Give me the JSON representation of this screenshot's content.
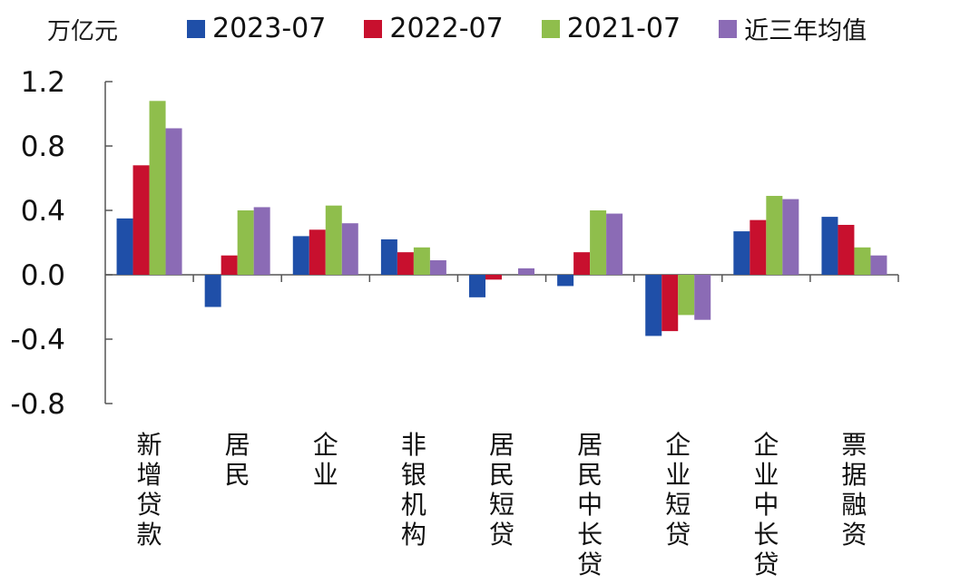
{
  "chart_data": {
    "type": "bar",
    "unit_label": "万亿元",
    "categories": [
      "新增贷款",
      "居民",
      "企业",
      "非银机构",
      "居民短贷",
      "居民中长贷",
      "企业短贷",
      "企业中长贷",
      "票据融资"
    ],
    "series": [
      {
        "name": "2023-07",
        "color": "#1f4fa8",
        "values": [
          0.35,
          -0.2,
          0.24,
          0.22,
          -0.14,
          -0.07,
          -0.38,
          0.27,
          0.36
        ]
      },
      {
        "name": "2022-07",
        "color": "#c8102e",
        "values": [
          0.68,
          0.12,
          0.28,
          0.14,
          -0.03,
          0.14,
          -0.35,
          0.34,
          0.31
        ]
      },
      {
        "name": "2021-07",
        "color": "#8fbe4c",
        "values": [
          1.08,
          0.4,
          0.43,
          0.17,
          0.0,
          0.4,
          -0.25,
          0.49,
          0.17
        ]
      },
      {
        "name": "近三年均值",
        "color": "#8b6bb5",
        "values": [
          0.91,
          0.42,
          0.32,
          0.09,
          0.04,
          0.38,
          -0.28,
          0.47,
          0.12
        ]
      }
    ],
    "ylim": [
      -0.8,
      1.2
    ],
    "yticks": [
      "-0.8",
      "-0.4",
      "0.0",
      "0.4",
      "0.8",
      "1.2"
    ],
    "legend_position": "top",
    "grid": false
  }
}
